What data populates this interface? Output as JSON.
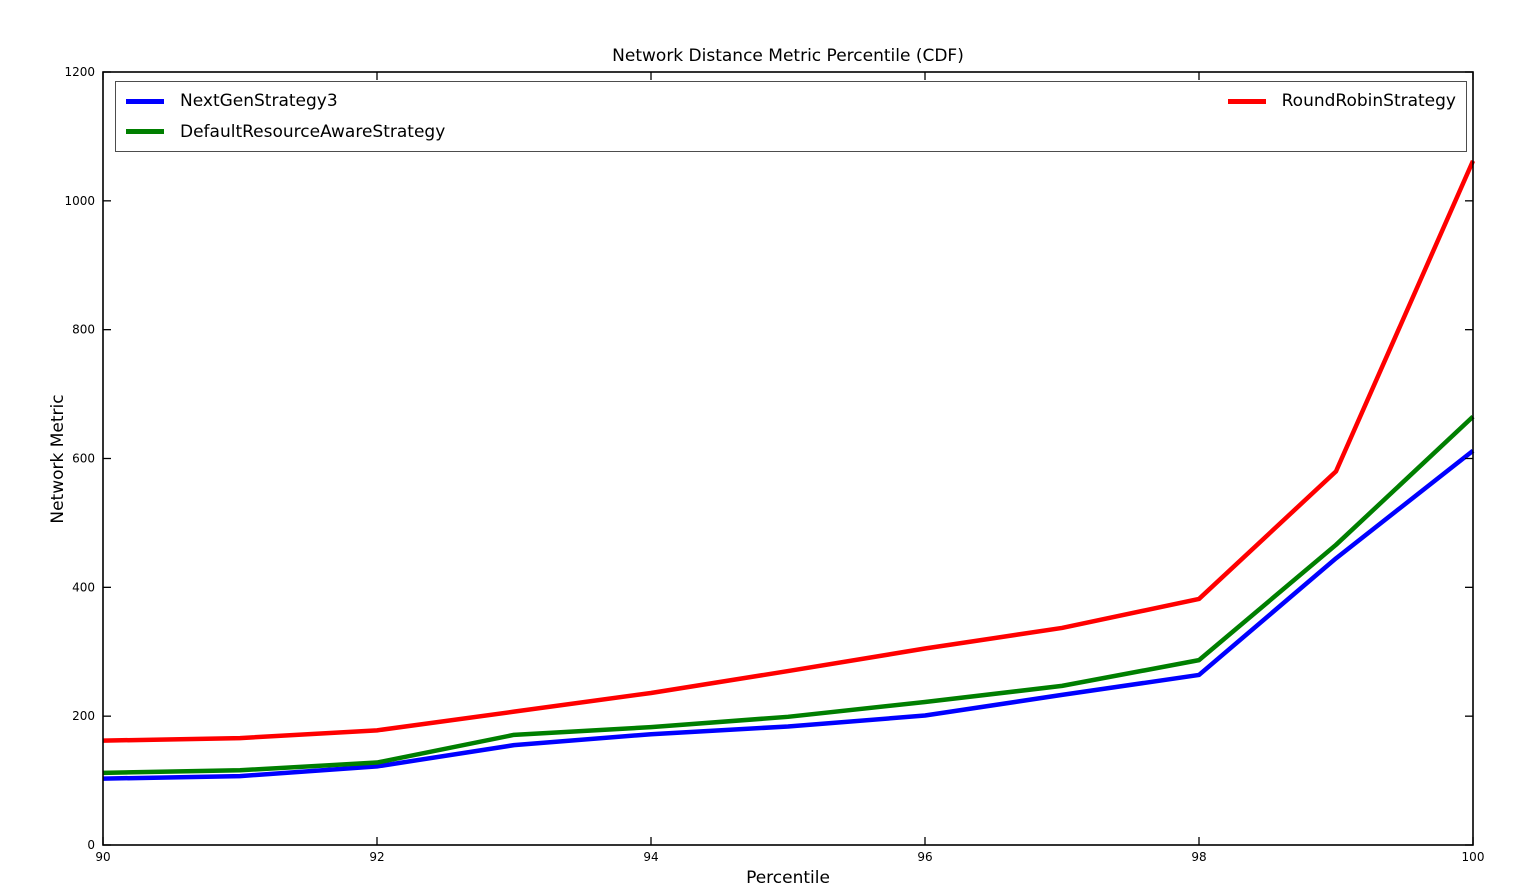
{
  "title": "Network Distance Metric Percentile (CDF)",
  "xlabel": "Percentile",
  "ylabel": "Network Metric",
  "legend": {
    "entries": [
      {
        "label": "NextGenStrategy3",
        "color": "#0000ff"
      },
      {
        "label": "RoundRobinStrategy",
        "color": "#ff0000"
      },
      {
        "label": "DefaultResourceAwareStrategy",
        "color": "#007f00"
      }
    ],
    "position": "top, expanded full width, 2 columns"
  },
  "chart_data": {
    "type": "line",
    "title": "Network Distance Metric Percentile (CDF)",
    "xlabel": "Percentile",
    "ylabel": "Network Metric",
    "x": [
      90,
      91,
      92,
      93,
      94,
      95,
      96,
      97,
      98,
      99,
      100
    ],
    "series": [
      {
        "name": "NextGenStrategy3",
        "color": "#0000ff",
        "values": [
          103,
          107,
          122,
          155,
          172,
          184,
          201,
          233,
          264,
          445,
          612
        ]
      },
      {
        "name": "DefaultResourceAwareStrategy",
        "color": "#007f00",
        "values": [
          112,
          116,
          128,
          171,
          183,
          199,
          222,
          247,
          287,
          466,
          665
        ]
      },
      {
        "name": "RoundRobinStrategy",
        "color": "#ff0000",
        "values": [
          162,
          166,
          178,
          207,
          236,
          270,
          305,
          337,
          382,
          580,
          1062
        ]
      }
    ],
    "xlim": [
      90,
      100
    ],
    "ylim": [
      0,
      1200
    ],
    "xticks": [
      90,
      92,
      94,
      96,
      98,
      100
    ],
    "yticks": [
      0,
      200,
      400,
      600,
      800,
      1000,
      1200
    ],
    "grid": false,
    "line_width": 4.5
  }
}
